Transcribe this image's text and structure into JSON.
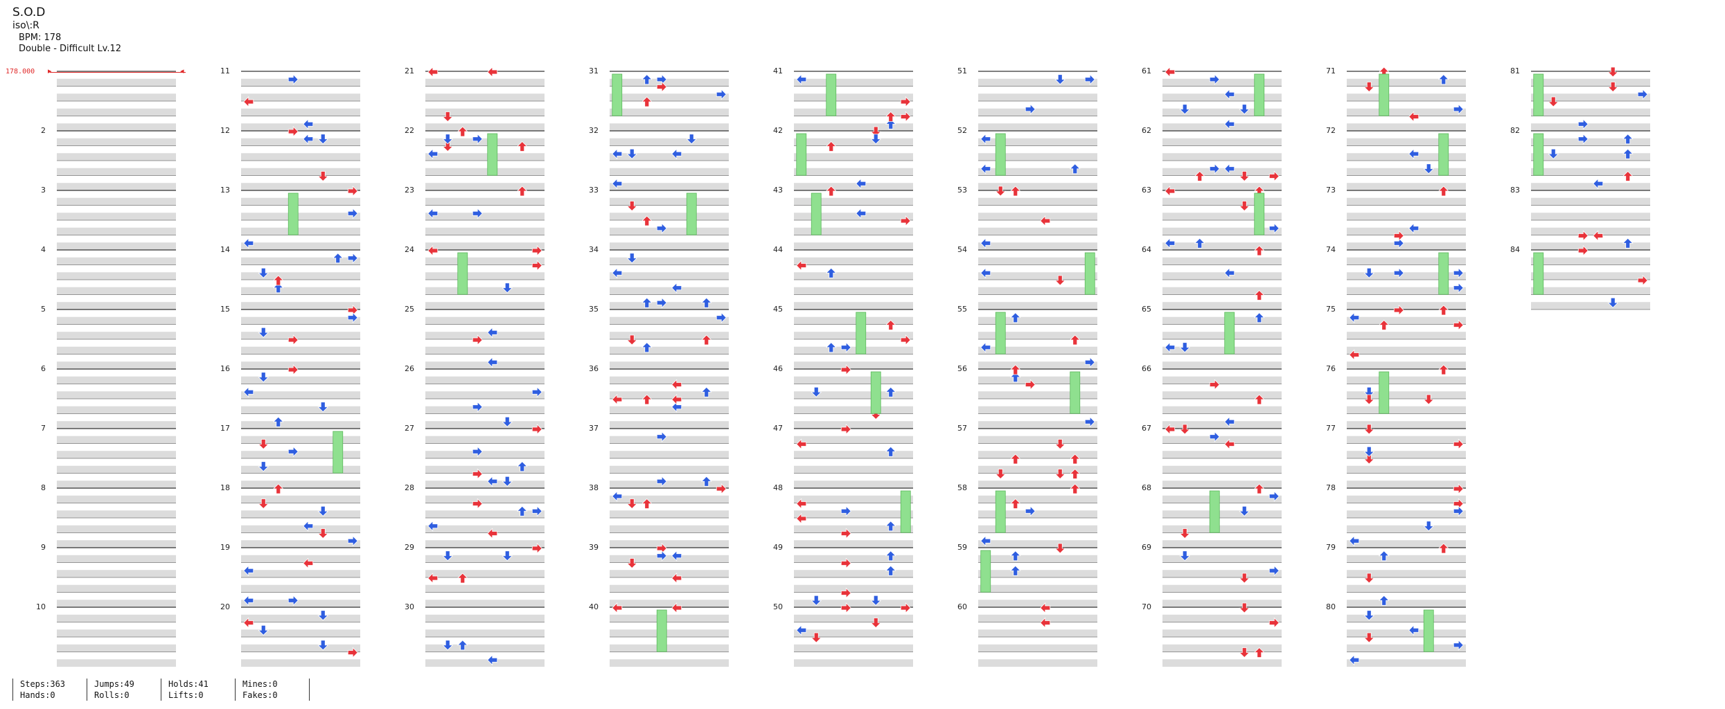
{
  "header": {
    "title": "S.O.D",
    "artist": "iso\\:R",
    "bpm_text": "BPM: 178",
    "difficulty_text": "Double - Difficult  Lv.12"
  },
  "bpm_marker": {
    "label": "178.000"
  },
  "colors": {
    "quarter": "#e8333a",
    "eighth": "#2f5ee0",
    "sixteenth": "#f2d23a",
    "hold": "#8fe08f",
    "stripe": "#dcdcdc"
  },
  "measures": {
    "first": 1,
    "last": 84,
    "visible_labels_start": 2
  },
  "stats": {
    "steps": "Steps:363",
    "hands": "Hands:0",
    "jumps": "Jumps:49",
    "rolls": "Rolls:0",
    "holds": "Holds:41",
    "lifts": "Lifts:0",
    "mines": "Mines:0",
    "fakes": "Fakes:0"
  }
}
